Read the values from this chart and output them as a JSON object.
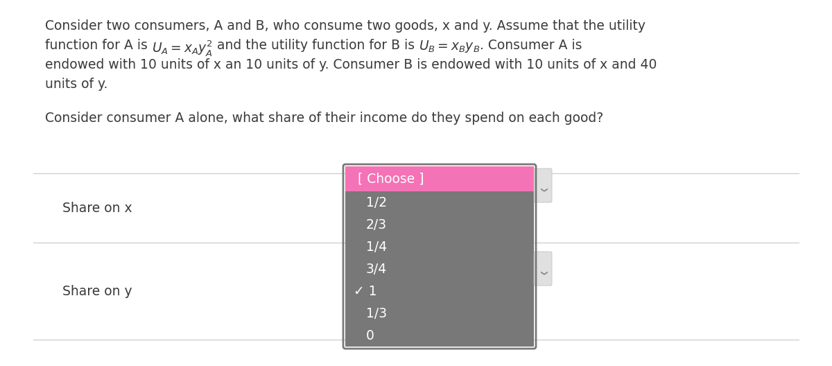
{
  "bg_color": "#ffffff",
  "text_color": "#3a3a3a",
  "paragraph1_line1": "Consider two consumers, A and B, who consume two goods, x and y. Assume that the utility",
  "paragraph1_line3": "endowed with 10 units of x an 10 units of y. Consumer B is endowed with 10 units of x and 40",
  "paragraph1_line4": "units of y.",
  "paragraph2": "Consider consumer A alone, what share of their income do they spend on each good?",
  "row1_label": "Share on x",
  "row2_label": "Share on y",
  "dropdown_header": "[ Choose ]",
  "dropdown_header_bg": "#f472b6",
  "dropdown_bg": "#787878",
  "dropdown_text_color": "#ffffff",
  "dropdown_items": [
    "1/2",
    "2/3",
    "1/4",
    "3/4",
    "✓ 1",
    "1/3",
    "0"
  ],
  "line_color": "#cccccc",
  "font_size_body": 13.5,
  "font_size_dropdown": 13.5,
  "scrollbar_tab_color": "#e0e0e0",
  "scrollbar_tab_edge": "#bbbbbb"
}
